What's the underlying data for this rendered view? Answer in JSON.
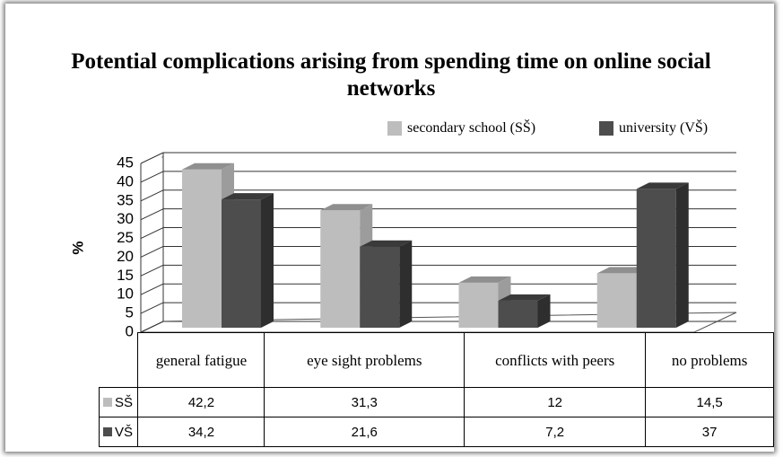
{
  "chart_data": {
    "type": "bar3d",
    "title": "Potential complications arising from spending time on online social networks",
    "y_label": "%",
    "categories": [
      "general fatigue",
      "eye sight problems",
      "conflicts with peers",
      "no problems"
    ],
    "series": [
      {
        "name": "secondary school (SŠ)",
        "short_name": "SŠ",
        "color": "#bdbdbd",
        "values": [
          42.2,
          31.3,
          12,
          14.5
        ],
        "value_labels": [
          "42,2",
          "31,3",
          "12",
          "14,5"
        ]
      },
      {
        "name": "university (VŠ)",
        "short_name": "VŠ",
        "color": "#4d4d4d",
        "values": [
          34.2,
          21.6,
          7.2,
          37
        ],
        "value_labels": [
          "34,2",
          "21,6",
          "7,2",
          "37"
        ]
      }
    ],
    "ylim": [
      0,
      45
    ],
    "yticks": [
      0,
      5,
      10,
      15,
      20,
      25,
      30,
      35,
      40,
      45
    ],
    "grid": true,
    "legend": "top-right"
  }
}
